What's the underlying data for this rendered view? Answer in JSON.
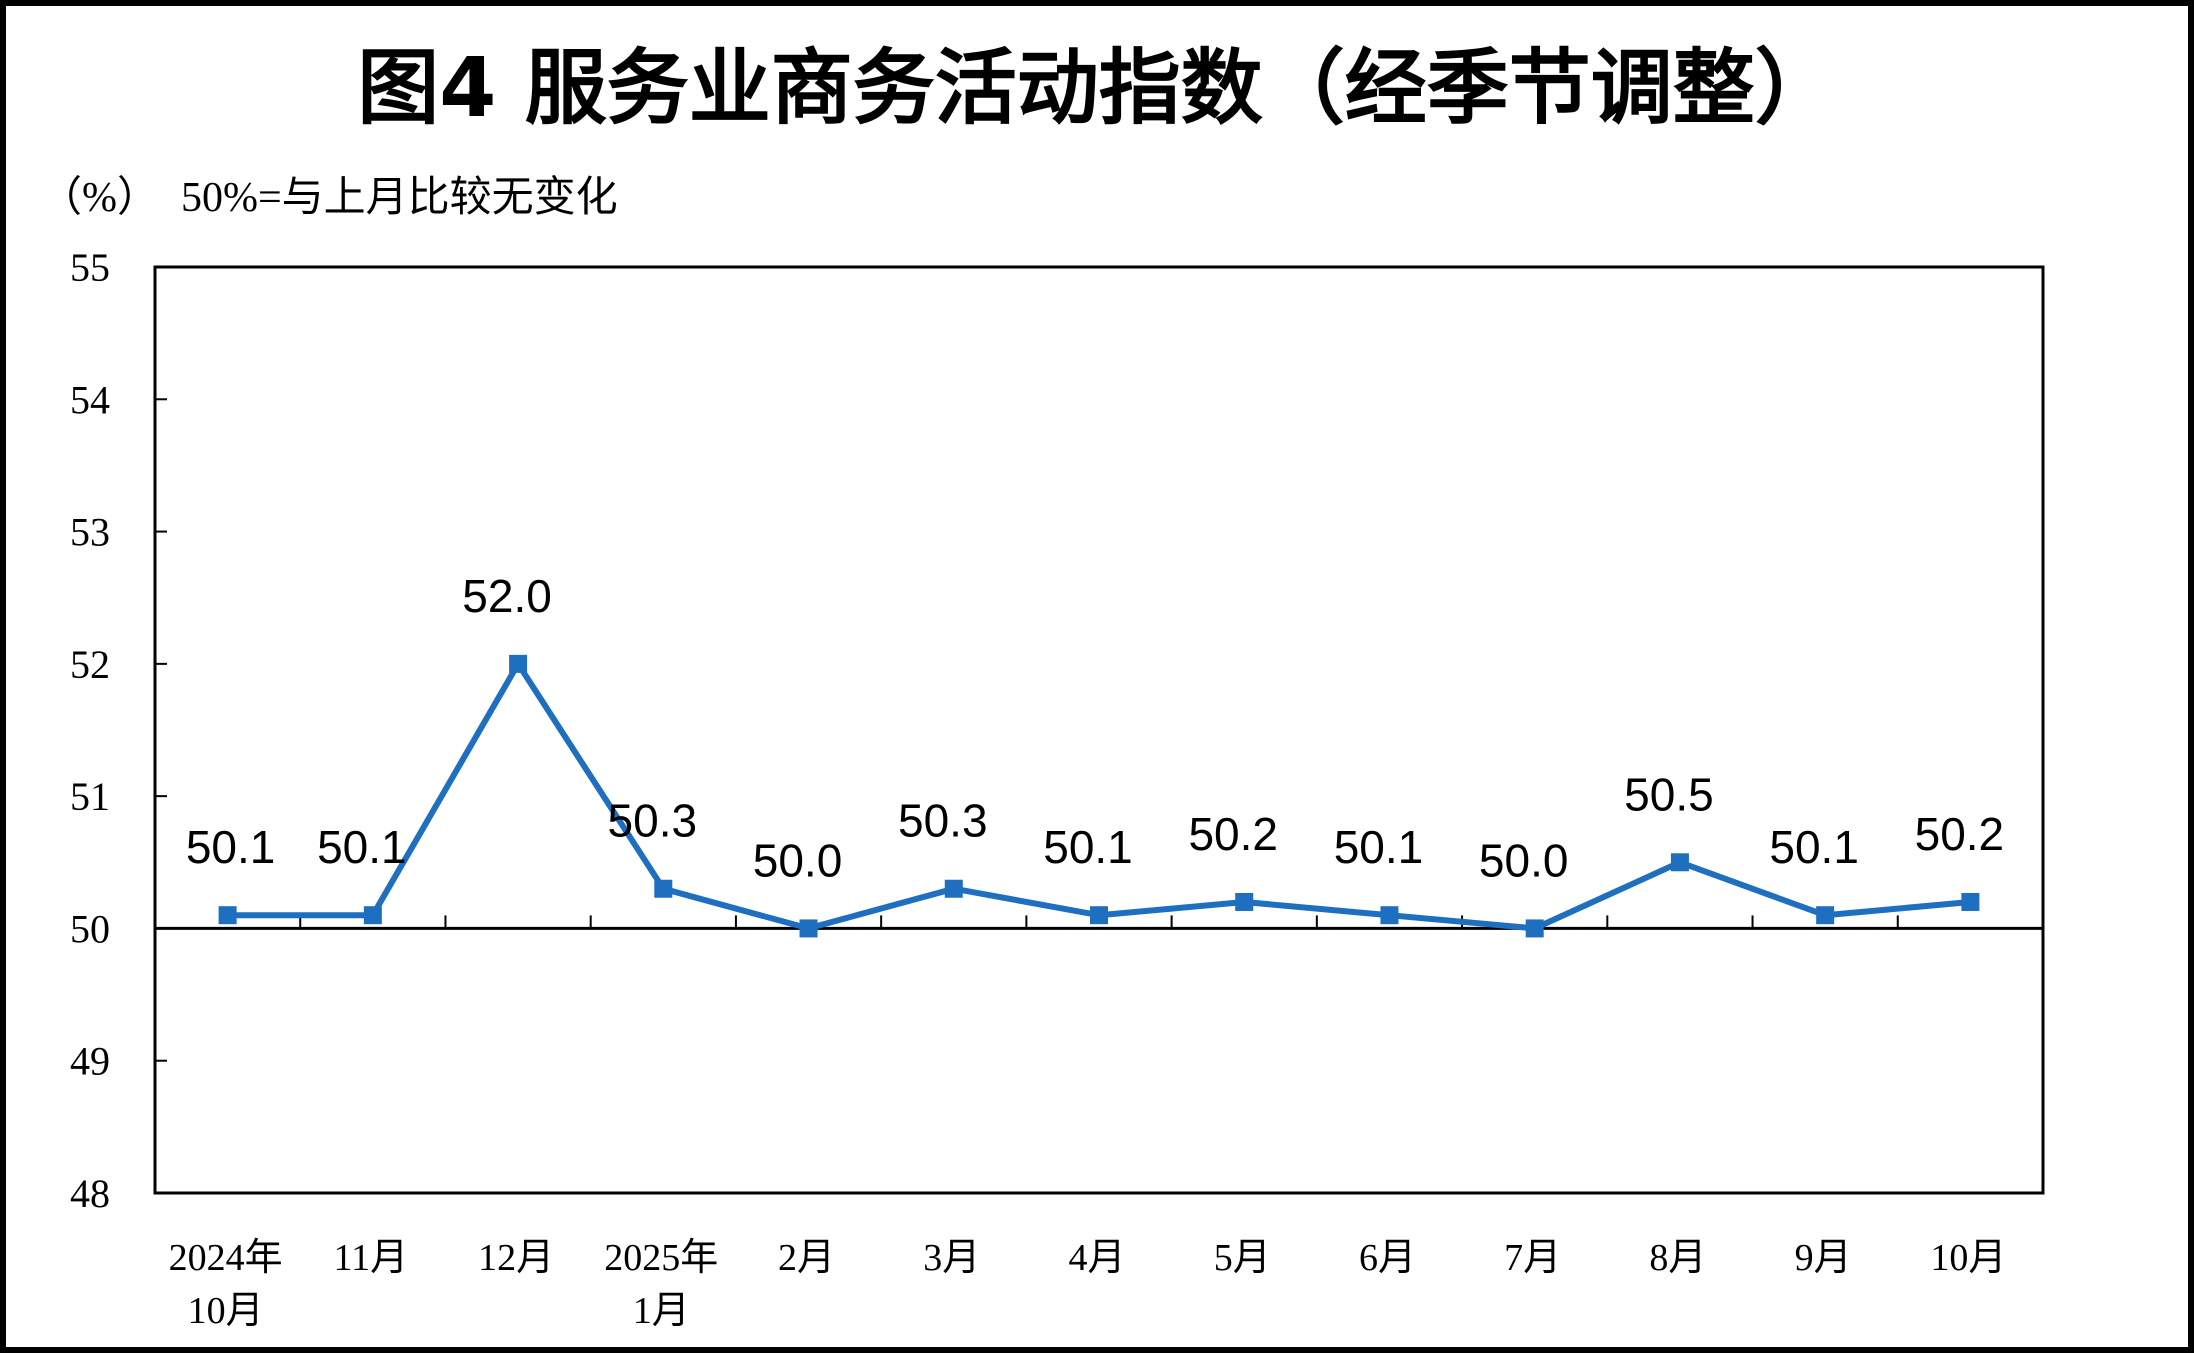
{
  "title": "图4  服务业商务活动指数（经季节调整）",
  "unit_label": "（%）",
  "reference_note": "50%=与上月比较无变化",
  "colors": {
    "line": "#1f6fc0",
    "axis": "#000000",
    "background": "#ffffff"
  },
  "chart_data": {
    "type": "line",
    "title": "图4  服务业商务活动指数（经季节调整）",
    "xlabel": "",
    "ylabel": "（%）",
    "categories": [
      [
        "2024年",
        "10月"
      ],
      [
        "11月"
      ],
      [
        "12月"
      ],
      [
        "2025年",
        "1月"
      ],
      [
        "2月"
      ],
      [
        "3月"
      ],
      [
        "4月"
      ],
      [
        "5月"
      ],
      [
        "6月"
      ],
      [
        "7月"
      ],
      [
        "8月"
      ],
      [
        "9月"
      ],
      [
        "10月"
      ]
    ],
    "series": [
      {
        "values": [
          50.1,
          50.1,
          52.0,
          50.3,
          50.0,
          50.3,
          50.1,
          50.2,
          50.1,
          50.0,
          50.5,
          50.1,
          50.2
        ],
        "labels": [
          "50.1",
          "50.1",
          "52.0",
          "50.3",
          "50.0",
          "50.3",
          "50.1",
          "50.2",
          "50.1",
          "50.0",
          "50.5",
          "50.1",
          "50.2"
        ],
        "marker": "square"
      }
    ],
    "ylim": [
      48,
      55
    ],
    "yticks": [
      "48",
      "49",
      "50",
      "51",
      "52",
      "53",
      "54",
      "55"
    ],
    "reference_line": 50,
    "grid": false,
    "legend": "none"
  }
}
